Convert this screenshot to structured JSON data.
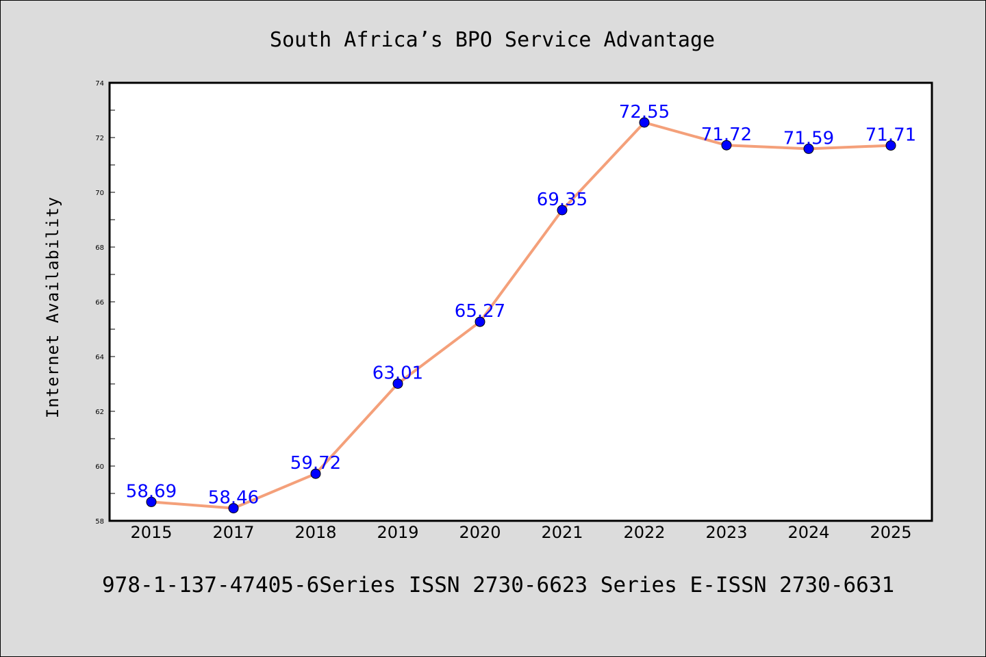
{
  "chart_data": {
    "type": "line",
    "title": "South Africa’s BPO Service Advantage",
    "xlabel": "",
    "ylabel": "Internet Availability",
    "categories": [
      "2015",
      "2017",
      "2018",
      "2019",
      "2020",
      "2021",
      "2022",
      "2023",
      "2024",
      "2025"
    ],
    "series": [
      {
        "values": [
          58.69,
          58.46,
          59.72,
          63.01,
          65.27,
          69.35,
          72.55,
          71.72,
          71.59,
          71.71
        ],
        "labels": [
          "58.69",
          "58.46",
          "59.72",
          "63.01",
          "65.27",
          "69.35",
          "72.55",
          "71.72",
          "71.59",
          "71.71"
        ],
        "line_color": "#f4a07a",
        "marker_color": "#0000ff"
      }
    ],
    "ylim": [
      58,
      74
    ],
    "yticks": [
      "58",
      "60",
      "62",
      "64",
      "66",
      "68",
      "70",
      "72",
      "74"
    ],
    "grid": false,
    "legend": "none"
  },
  "footer": {
    "text": "978-1-137-47405-6Series ISSN 2730-6623 Series E-ISSN 2730-6631"
  },
  "colors": {
    "background": "#dcdcdc",
    "plot_background": "#ffffff",
    "line": "#f4a07a",
    "marker": "#0000ff",
    "label": "#0000ff"
  }
}
